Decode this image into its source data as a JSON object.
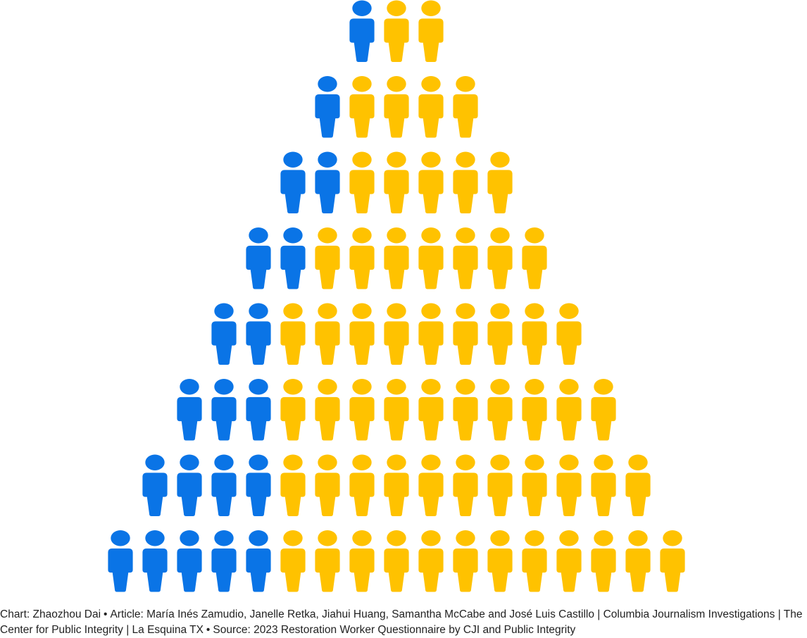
{
  "chart_data": {
    "type": "pictogram",
    "icon": "person-icon",
    "colors": {
      "highlight": "#0a74e6",
      "base": "#ffc200"
    },
    "rows": [
      {
        "highlighted": 1,
        "total": 3
      },
      {
        "highlighted": 1,
        "total": 5
      },
      {
        "highlighted": 2,
        "total": 7
      },
      {
        "highlighted": 2,
        "total": 9
      },
      {
        "highlighted": 2,
        "total": 11
      },
      {
        "highlighted": 3,
        "total": 13
      },
      {
        "highlighted": 4,
        "total": 15
      },
      {
        "highlighted": 5,
        "total": 17
      }
    ]
  },
  "credits": {
    "chart": "Chart: Zhaozhou Dai",
    "article": "Article: María Inés Zamudio, Janelle Retka, Jiahui Huang, Samantha McCabe and José Luis Castillo | Columbia Journalism Investigations | The Center for Public Integrity | La Esquina TX",
    "source": "Source: 2023 Restoration Worker Questionnaire by CJI and Public Integrity",
    "separator": "•"
  }
}
